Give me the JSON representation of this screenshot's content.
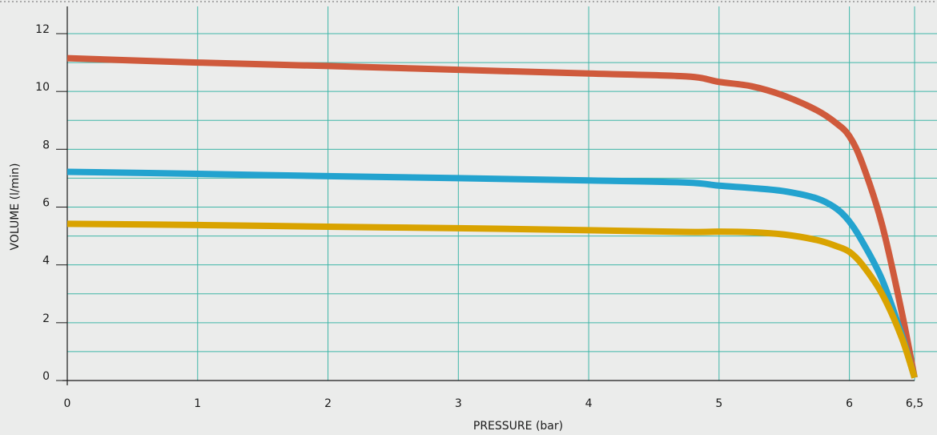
{
  "chart_data": {
    "type": "line",
    "title": "",
    "xlabel": "PRESSURE  (bar)",
    "ylabel": "VOLUME  (l/min)",
    "xlim": [
      0,
      6.5
    ],
    "ylim": [
      0,
      12
    ],
    "x_ticks": [
      0,
      1,
      2,
      3,
      4,
      5,
      6,
      6.5
    ],
    "x_tick_labels": [
      "0",
      "1",
      "2",
      "3",
      "4",
      "5",
      "6",
      "6,5"
    ],
    "y_ticks": [
      0,
      2,
      4,
      6,
      8,
      10,
      12
    ],
    "y_tick_labels": [
      "0",
      "2",
      "4",
      "6",
      "8",
      "10",
      "12"
    ],
    "y_minor_gridlines": [
      1,
      3,
      5,
      7,
      9,
      11
    ],
    "grid": true,
    "series": [
      {
        "color": "#cf5a3c",
        "points": [
          [
            0,
            11.15
          ],
          [
            1,
            11.0
          ],
          [
            2,
            10.88
          ],
          [
            3,
            10.75
          ],
          [
            4,
            10.62
          ],
          [
            4.75,
            10.52
          ],
          [
            5.0,
            10.33
          ],
          [
            5.25,
            10.18
          ],
          [
            5.5,
            9.85
          ],
          [
            5.75,
            9.35
          ],
          [
            5.9,
            8.9
          ],
          [
            6.0,
            8.45
          ],
          [
            6.1,
            7.5
          ],
          [
            6.25,
            5.4
          ],
          [
            6.4,
            2.4
          ],
          [
            6.5,
            0.1
          ]
        ]
      },
      {
        "color": "#23a3cf",
        "points": [
          [
            0,
            7.22
          ],
          [
            1,
            7.15
          ],
          [
            2,
            7.07
          ],
          [
            3,
            7.0
          ],
          [
            4,
            6.92
          ],
          [
            4.75,
            6.85
          ],
          [
            5.0,
            6.74
          ],
          [
            5.25,
            6.66
          ],
          [
            5.5,
            6.55
          ],
          [
            5.75,
            6.3
          ],
          [
            5.9,
            5.95
          ],
          [
            6.0,
            5.5
          ],
          [
            6.1,
            4.8
          ],
          [
            6.25,
            3.5
          ],
          [
            6.4,
            1.6
          ],
          [
            6.5,
            0.1
          ]
        ]
      },
      {
        "color": "#d9a300",
        "points": [
          [
            0,
            5.42
          ],
          [
            1,
            5.38
          ],
          [
            2,
            5.32
          ],
          [
            3,
            5.27
          ],
          [
            4,
            5.2
          ],
          [
            4.75,
            5.14
          ],
          [
            5.0,
            5.15
          ],
          [
            5.25,
            5.13
          ],
          [
            5.5,
            5.05
          ],
          [
            5.75,
            4.86
          ],
          [
            5.9,
            4.65
          ],
          [
            6.0,
            4.45
          ],
          [
            6.1,
            4.0
          ],
          [
            6.25,
            3.0
          ],
          [
            6.4,
            1.5
          ],
          [
            6.5,
            0.1
          ]
        ]
      }
    ]
  }
}
